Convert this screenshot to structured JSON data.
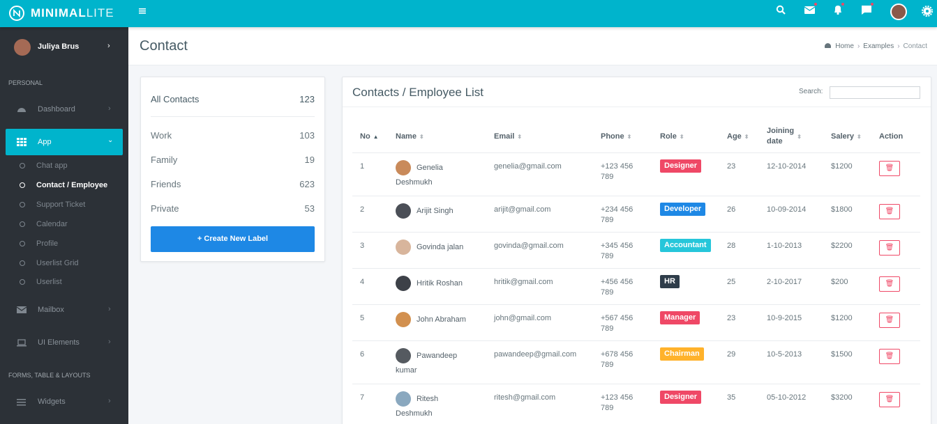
{
  "topbar": {
    "brand": "MINIMAL",
    "brand_suffix": "LITE"
  },
  "sidebar": {
    "user": "Juliya Brus",
    "heading_personal": "PERSONAL",
    "dashboard": "Dashboard",
    "app": "App",
    "app_items": [
      "Chat app",
      "Contact / Employee",
      "Support Ticket",
      "Calendar",
      "Profile",
      "Userlist Grid",
      "Userlist"
    ],
    "active_item": 1,
    "mailbox": "Mailbox",
    "ui_elements": "UI Elements",
    "heading_forms": "FORMS, TABLE & LAYOUTS",
    "widgets": "Widgets"
  },
  "page": {
    "title": "Contact",
    "breadcrumb": [
      "Home",
      "Examples",
      "Contact"
    ]
  },
  "labels": {
    "all": {
      "label": "All Contacts",
      "count": 123
    },
    "items": [
      {
        "label": "Work",
        "count": 103
      },
      {
        "label": "Family",
        "count": 19
      },
      {
        "label": "Friends",
        "count": 623
      },
      {
        "label": "Private",
        "count": 53
      }
    ],
    "button": "+ Create New Label"
  },
  "table": {
    "title": "Contacts / Employee List",
    "search": "Search:",
    "columns": [
      "No",
      "Name",
      "Email",
      "Phone",
      "Role",
      "Age",
      "Joining date",
      "Salery",
      "Action"
    ],
    "rows": [
      {
        "no": 1,
        "name": "Genelia Deshmukh",
        "email": "genelia@gmail.com",
        "phone": "+123 456 789",
        "role": "Designer",
        "role_color": "#ef4866",
        "age": 23,
        "joining": "12-10-2014",
        "salary": "$1200"
      },
      {
        "no": 2,
        "name": "Arijit Singh",
        "email": "arijit@gmail.com",
        "phone": "+234 456 789",
        "role": "Developer",
        "role_color": "#1e88e5",
        "age": 26,
        "joining": "10-09-2014",
        "salary": "$1800"
      },
      {
        "no": 3,
        "name": "Govinda jalan",
        "email": "govinda@gmail.com",
        "phone": "+345 456 789",
        "role": "Accountant",
        "role_color": "#26c6da",
        "age": 28,
        "joining": "1-10-2013",
        "salary": "$2200"
      },
      {
        "no": 4,
        "name": "Hritik Roshan",
        "email": "hritik@gmail.com",
        "phone": "+456 456 789",
        "role": "HR",
        "role_color": "#2f3d4a",
        "age": 25,
        "joining": "2-10-2017",
        "salary": "$200"
      },
      {
        "no": 5,
        "name": "John Abraham",
        "email": "john@gmail.com",
        "phone": "+567 456 789",
        "role": "Manager",
        "role_color": "#ef4866",
        "age": 23,
        "joining": "10-9-2015",
        "salary": "$1200"
      },
      {
        "no": 6,
        "name": "Pawandeep kumar",
        "email": "pawandeep@gmail.com",
        "phone": "+678 456 789",
        "role": "Chairman",
        "role_color": "#ffb22b",
        "age": 29,
        "joining": "10-5-2013",
        "salary": "$1500"
      },
      {
        "no": 7,
        "name": "Ritesh Deshmukh",
        "email": "ritesh@gmail.com",
        "phone": "+123 456 789",
        "role": "Designer",
        "role_color": "#ef4866",
        "age": 35,
        "joining": "05-10-2012",
        "salary": "$3200"
      }
    ]
  }
}
